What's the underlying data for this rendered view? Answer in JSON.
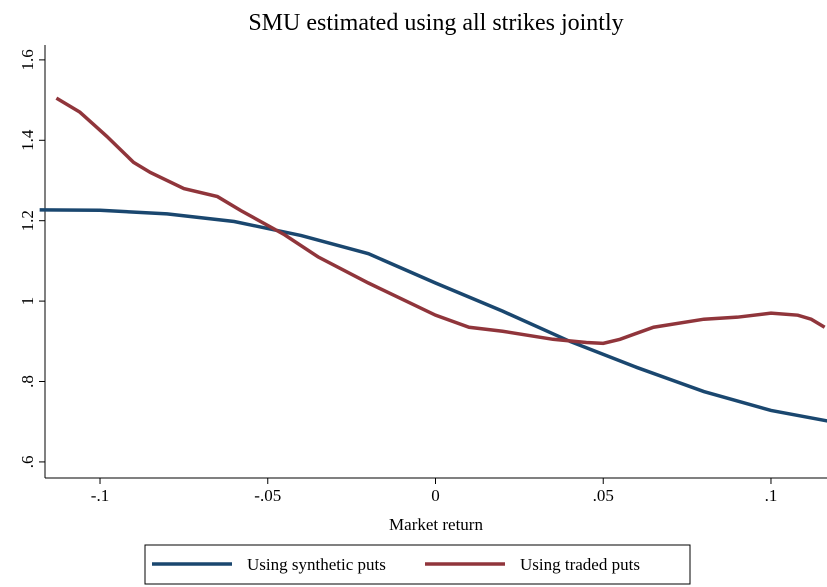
{
  "chart_data": {
    "type": "line",
    "title": "SMU estimated using all strikes jointly",
    "x_label": "Market return",
    "xlim": [
      -0.1164,
      0.1167
    ],
    "ylim": [
      0.56,
      1.637
    ],
    "xticks": [
      {
        "value": -0.1,
        "label": "-.1"
      },
      {
        "value": -0.05,
        "label": "-.05"
      },
      0,
      {
        "value": 0.05,
        "label": ".05"
      },
      {
        "value": 0.1,
        "label": ".1"
      }
    ],
    "yticks": [
      {
        "value": 0.6,
        "label": ".6"
      },
      {
        "value": 0.8,
        "label": ".8"
      },
      1,
      1.2,
      1.4,
      1.6
    ],
    "series": [
      {
        "name": "Using synthetic puts",
        "color": "#1a476f",
        "x": [
          -0.118,
          -0.1,
          -0.08,
          -0.06,
          -0.04,
          -0.02,
          0,
          0.02,
          0.04,
          0.06,
          0.08,
          0.1,
          0.118
        ],
        "values": [
          1.227,
          1.226,
          1.217,
          1.198,
          1.163,
          1.118,
          1.045,
          0.975,
          0.9,
          0.835,
          0.775,
          0.728,
          0.7
        ]
      },
      {
        "name": "Using traded puts",
        "color": "#90353b",
        "x": [
          -0.113,
          -0.106,
          -0.098,
          -0.09,
          -0.085,
          -0.075,
          -0.065,
          -0.058,
          -0.045,
          -0.035,
          -0.02,
          0,
          0.01,
          0.02,
          0.035,
          0.045,
          0.05,
          0.055,
          0.065,
          0.08,
          0.09,
          0.1,
          0.108,
          0.112,
          0.116
        ],
        "values": [
          1.505,
          1.47,
          1.41,
          1.345,
          1.32,
          1.28,
          1.26,
          1.225,
          1.165,
          1.11,
          1.045,
          0.965,
          0.935,
          0.925,
          0.905,
          0.897,
          0.895,
          0.905,
          0.935,
          0.955,
          0.96,
          0.97,
          0.965,
          0.955,
          0.935
        ]
      }
    ]
  }
}
